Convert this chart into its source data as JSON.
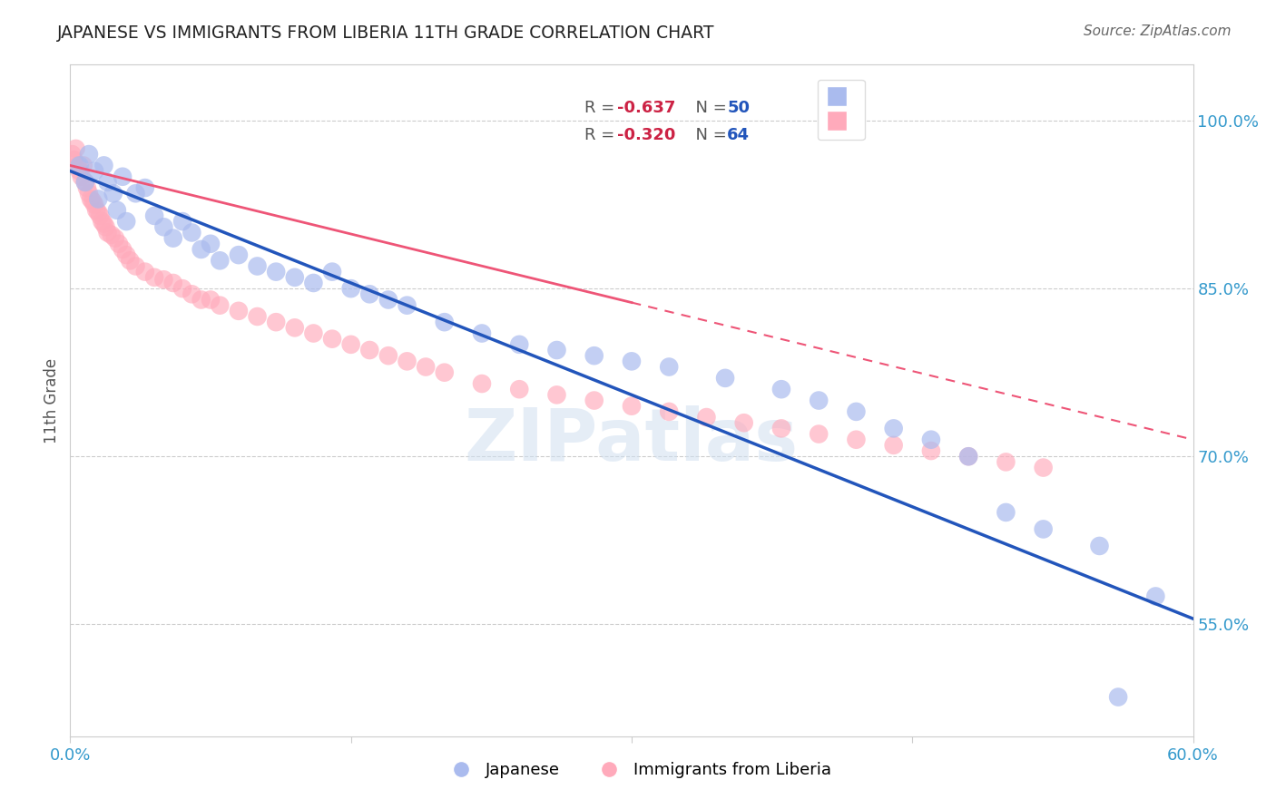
{
  "title": "JAPANESE VS IMMIGRANTS FROM LIBERIA 11TH GRADE CORRELATION CHART",
  "source": "Source: ZipAtlas.com",
  "ylabel": "11th Grade",
  "xmin": 0.0,
  "xmax": 60.0,
  "ymin": 45.0,
  "ymax": 105.0,
  "yticks_right": [
    55.0,
    70.0,
    85.0,
    100.0
  ],
  "ytick_labels_right": [
    "55.0%",
    "70.0%",
    "85.0%",
    "100.0%"
  ],
  "legend_label_japanese": "Japanese",
  "legend_label_liberia": "Immigrants from Liberia",
  "blue_dot_color": "#aabbee",
  "pink_dot_color": "#ffaabb",
  "blue_line_color": "#2255bb",
  "pink_line_color": "#ee5577",
  "watermark": "ZIPatlas",
  "background_color": "#ffffff",
  "grid_color": "#cccccc",
  "blue_R": "-0.637",
  "blue_N": "50",
  "pink_R": "-0.320",
  "pink_N": "64",
  "blue_line_x": [
    0,
    60
  ],
  "blue_line_y": [
    95.5,
    55.5
  ],
  "pink_line_x": [
    0,
    60
  ],
  "pink_line_y": [
    96.0,
    71.5
  ],
  "blue_scatter_x": [
    0.5,
    0.8,
    1.0,
    1.3,
    1.5,
    1.8,
    2.0,
    2.3,
    2.5,
    2.8,
    3.0,
    3.5,
    4.0,
    4.5,
    5.0,
    5.5,
    6.0,
    6.5,
    7.0,
    7.5,
    8.0,
    9.0,
    10.0,
    11.0,
    12.0,
    13.0,
    14.0,
    15.0,
    16.0,
    17.0,
    18.0,
    20.0,
    22.0,
    24.0,
    26.0,
    28.0,
    30.0,
    32.0,
    35.0,
    38.0,
    40.0,
    42.0,
    44.0,
    46.0,
    48.0,
    50.0,
    52.0,
    55.0,
    58.0,
    56.0
  ],
  "blue_scatter_y": [
    96.0,
    94.5,
    97.0,
    95.5,
    93.0,
    96.0,
    94.5,
    93.5,
    92.0,
    95.0,
    91.0,
    93.5,
    94.0,
    91.5,
    90.5,
    89.5,
    91.0,
    90.0,
    88.5,
    89.0,
    87.5,
    88.0,
    87.0,
    86.5,
    86.0,
    85.5,
    86.5,
    85.0,
    84.5,
    84.0,
    83.5,
    82.0,
    81.0,
    80.0,
    79.5,
    79.0,
    78.5,
    78.0,
    77.0,
    76.0,
    75.0,
    74.0,
    72.5,
    71.5,
    70.0,
    65.0,
    63.5,
    62.0,
    57.5,
    48.5
  ],
  "pink_scatter_x": [
    0.1,
    0.2,
    0.3,
    0.4,
    0.5,
    0.6,
    0.7,
    0.8,
    0.9,
    1.0,
    1.1,
    1.2,
    1.3,
    1.4,
    1.5,
    1.6,
    1.7,
    1.8,
    1.9,
    2.0,
    2.2,
    2.4,
    2.6,
    2.8,
    3.0,
    3.2,
    3.5,
    4.0,
    4.5,
    5.0,
    5.5,
    6.0,
    6.5,
    7.0,
    7.5,
    8.0,
    9.0,
    10.0,
    11.0,
    12.0,
    13.0,
    14.0,
    15.0,
    16.0,
    17.0,
    18.0,
    19.0,
    20.0,
    22.0,
    24.0,
    26.0,
    28.0,
    30.0,
    32.0,
    34.0,
    36.0,
    38.0,
    40.0,
    42.0,
    44.0,
    46.0,
    48.0,
    50.0,
    52.0
  ],
  "pink_scatter_y": [
    97.0,
    96.5,
    97.5,
    96.0,
    95.5,
    95.0,
    96.0,
    94.5,
    94.0,
    93.5,
    93.0,
    92.8,
    92.5,
    92.0,
    91.8,
    91.5,
    91.0,
    90.8,
    90.5,
    90.0,
    89.8,
    89.5,
    89.0,
    88.5,
    88.0,
    87.5,
    87.0,
    86.5,
    86.0,
    85.8,
    85.5,
    85.0,
    84.5,
    84.0,
    84.0,
    83.5,
    83.0,
    82.5,
    82.0,
    81.5,
    81.0,
    80.5,
    80.0,
    79.5,
    79.0,
    78.5,
    78.0,
    77.5,
    76.5,
    76.0,
    75.5,
    75.0,
    74.5,
    74.0,
    73.5,
    73.0,
    72.5,
    72.0,
    71.5,
    71.0,
    70.5,
    70.0,
    69.5,
    69.0
  ]
}
